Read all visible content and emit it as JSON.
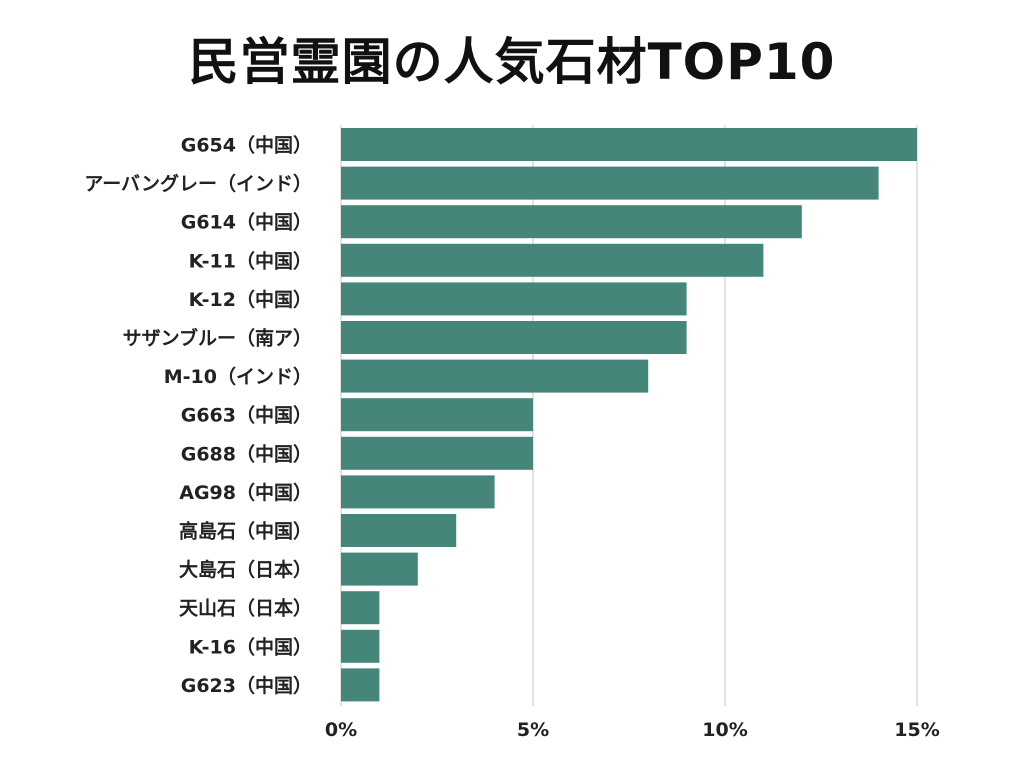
{
  "chart_data": {
    "type": "bar",
    "orientation": "horizontal",
    "title": "民営霊園の人気石材TOP10",
    "xlabel": "",
    "ylabel": "",
    "categories": [
      "G654（中国）",
      "アーバングレー（インド）",
      "G614（中国）",
      "K-11（中国）",
      "K-12（中国）",
      "サザンブルー（南ア）",
      "M-10（インド）",
      "G663（中国）",
      "G688（中国）",
      "AG98（中国）",
      "高島石（中国）",
      "大島石（日本）",
      "天山石（日本）",
      "K-16（中国）",
      "G623（中国）"
    ],
    "values": [
      15,
      14,
      12,
      11,
      9,
      9,
      8,
      5,
      5,
      4,
      3,
      2,
      1,
      1,
      1
    ],
    "unit": "%",
    "xlim": [
      0,
      15
    ],
    "xticks": [
      0,
      5,
      10,
      15
    ],
    "xtick_labels": [
      "0%",
      "5%",
      "10%",
      "15%"
    ],
    "grid": true,
    "bar_color": "#46857a",
    "grid_color": "#d9d9d9"
  }
}
